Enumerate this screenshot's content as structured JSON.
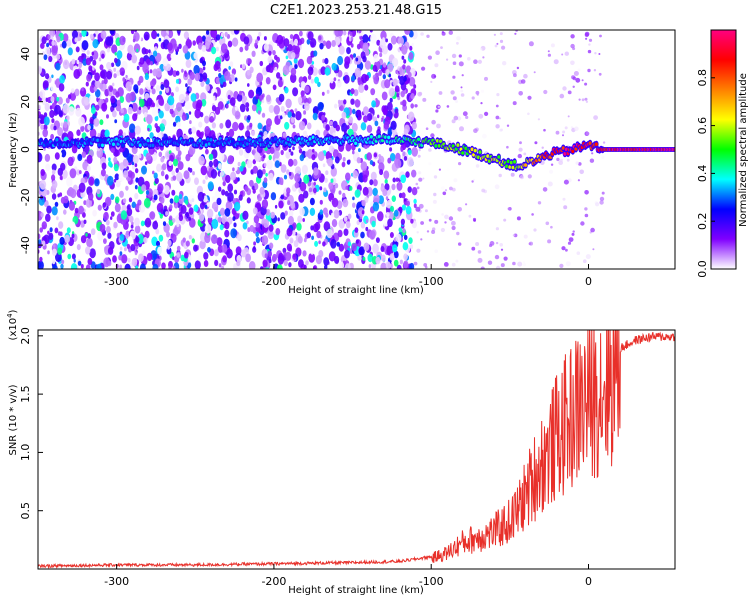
{
  "title": "C2E1.2023.253.21.48.G15",
  "chart_data": [
    {
      "type": "heatmap",
      "xlabel": "Height of straight line (km)",
      "ylabel": "Frequency (Hz)",
      "xlim": [
        -350,
        55
      ],
      "ylim": [
        -50,
        50
      ],
      "xticks": [
        -300,
        -200,
        -100,
        0
      ],
      "xtick_labels": [
        "-300",
        "-200",
        "-100",
        "0"
      ],
      "yticks": [
        -40,
        -20,
        0,
        20,
        40
      ],
      "ytick_labels": [
        "-40",
        "-20",
        "0",
        "20",
        "40"
      ],
      "colorbar": {
        "label": "Normalized spectral amplitude",
        "range": [
          0,
          1
        ],
        "ticks": [
          0.0,
          0.2,
          0.4,
          0.6,
          0.8
        ],
        "tick_labels": [
          "0.0",
          "0.2",
          "0.4",
          "0.6",
          "0.8"
        ],
        "colors": [
          "#ffffff",
          "#8000ff",
          "#0000ff",
          "#00ffff",
          "#00ff00",
          "#ffff00",
          "#ff8000",
          "#ff0000",
          "#ff0080"
        ]
      },
      "ridge": {
        "x": [
          -345,
          -300,
          -250,
          -200,
          -160,
          -130,
          -100,
          -80,
          -60,
          -45,
          -35,
          -25,
          -10,
          0,
          10,
          55
        ],
        "frequency": [
          3,
          3,
          3,
          3,
          4,
          4,
          3,
          0,
          -4,
          -7,
          -5,
          -2,
          0,
          2,
          0,
          0
        ],
        "amplitude": [
          0.3,
          0.32,
          0.3,
          0.32,
          0.35,
          0.4,
          0.5,
          0.55,
          0.6,
          0.55,
          0.7,
          0.85,
          0.95,
          0.9,
          0.95,
          1.0
        ]
      },
      "grid": false
    },
    {
      "type": "line",
      "xlabel": "Height of straight line (km)",
      "ylabel": "SNR (10 * v/v)",
      "y_multiplier_label": "(x10",
      "y_multiplier_exp": "4",
      "y_multiplier_close": ")",
      "xlim": [
        -350,
        55
      ],
      "ylim": [
        0,
        2.05
      ],
      "xticks": [
        -300,
        -200,
        -100,
        0
      ],
      "xtick_labels": [
        "-300",
        "-200",
        "-100",
        "0"
      ],
      "yticks": [
        0.5,
        1.0,
        1.5,
        2.0
      ],
      "ytick_labels": [
        "0.5",
        "1.0",
        "1.5",
        "2.0"
      ],
      "series": [
        {
          "color": "#e8302a",
          "x": [
            -350,
            -300,
            -250,
            -200,
            -150,
            -120,
            -100,
            -90,
            -80,
            -70,
            -60,
            -50,
            -45,
            -40,
            -35,
            -30,
            -25,
            -20,
            -15,
            -10,
            -5,
            0,
            10,
            20,
            30,
            40,
            55
          ],
          "y": [
            0.02,
            0.03,
            0.03,
            0.04,
            0.05,
            0.06,
            0.1,
            0.15,
            0.25,
            0.3,
            0.35,
            0.45,
            0.55,
            0.7,
            0.85,
            1.0,
            1.1,
            1.25,
            1.35,
            1.45,
            1.55,
            1.6,
            1.75,
            1.9,
            1.97,
            2.0,
            2.0
          ]
        }
      ],
      "grid": false
    }
  ]
}
